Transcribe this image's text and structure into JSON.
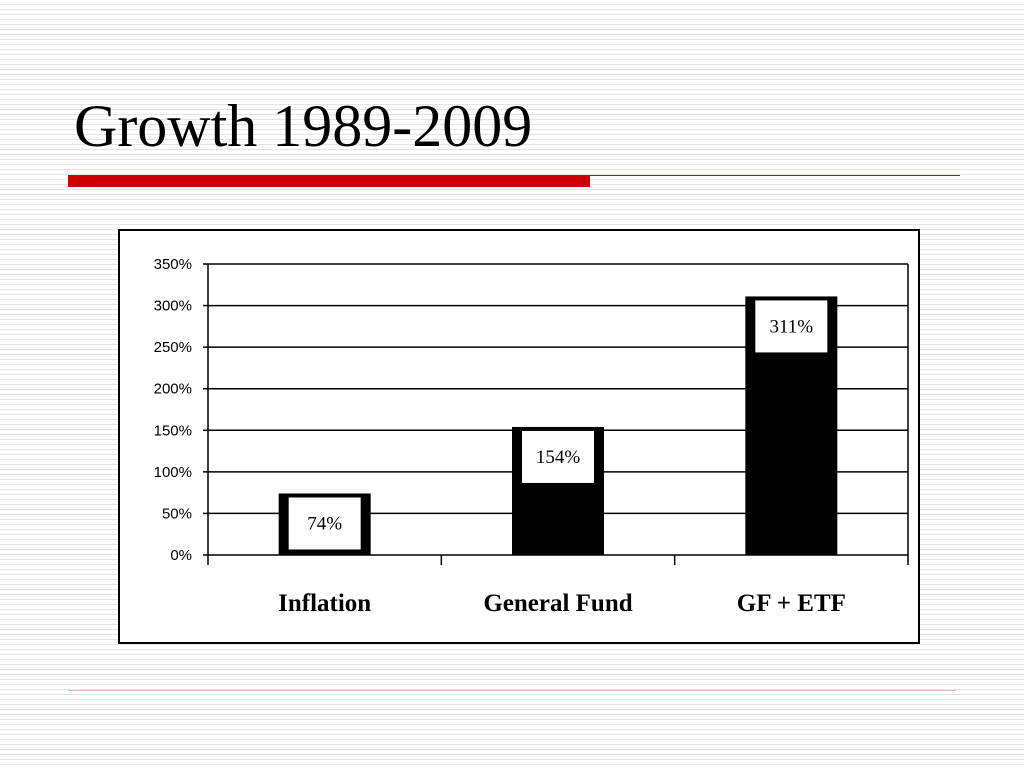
{
  "slide": {
    "title": "Growth 1989-2009"
  },
  "colors": {
    "accent_red": "#CC0000",
    "rule_light": "#E8B4B4",
    "bar_fill": "#000000",
    "label_box": "#FFFFFF"
  },
  "chart_data": {
    "type": "bar",
    "categories": [
      "Inflation",
      "General Fund",
      "GF + ETF"
    ],
    "values": [
      74,
      154,
      311
    ],
    "data_labels": [
      "74%",
      "154%",
      "311%"
    ],
    "y_ticks": [
      "0%",
      "50%",
      "100%",
      "150%",
      "200%",
      "250%",
      "300%",
      "350%"
    ],
    "ylim": [
      0,
      350
    ],
    "y_unit": "percent",
    "grid": true,
    "legend": "none"
  }
}
